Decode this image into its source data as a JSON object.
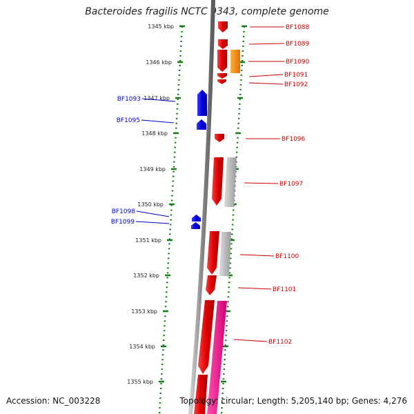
{
  "title": "Bacteroides fragilis NCTC 9343, complete genome",
  "accession": "Accession: NC_003228",
  "summary": "Topology: circular; Length: 5,205,140 bp; Genes: 4,276",
  "colors": {
    "scale": "#1a7a1a",
    "backbone": "#8a8a8a",
    "forward_gene": "#e00000",
    "reverse_gene": "#0000e0",
    "orange_feature": "#ff8c00",
    "gray_feature": "#b8b8b8",
    "pink_feature": "#ff1493",
    "forward_label": "#cc0000",
    "reverse_label": "#0000cc"
  },
  "scale_labels": [
    "1345 kbp",
    "1346 kbp",
    "1347 kbp",
    "1348 kbp",
    "1349 kbp",
    "1350 kbp",
    "1351 kbp",
    "1352 kbp",
    "1353 kbp",
    "1354 kbp",
    "1355 kbp"
  ],
  "forward_genes": [
    "BF1088",
    "BF1089",
    "BF1090",
    "BF1091",
    "BF1092",
    "BF1096",
    "BF1097",
    "BF1100",
    "BF1101",
    "BF1102"
  ],
  "reverse_genes": [
    "BF1093",
    "BF1095",
    "BF1098",
    "BF1099"
  ]
}
